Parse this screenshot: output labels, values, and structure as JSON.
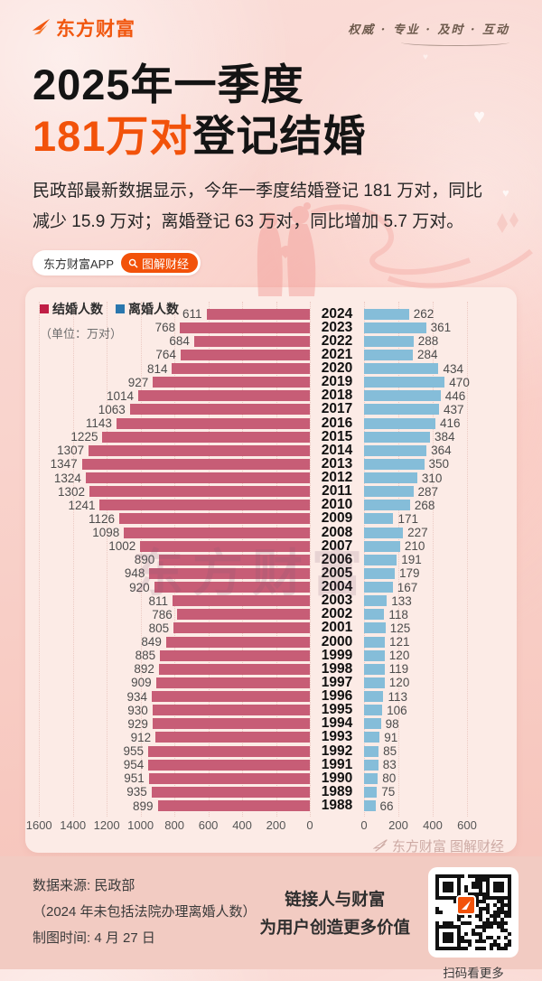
{
  "colors": {
    "accent": "#f2520a",
    "marriage_bar": "#c75d76",
    "divorce_bar": "#85bdd9",
    "legend_marriage": "#c01e45",
    "legend_divorce": "#2a77ae"
  },
  "header": {
    "brand": "东方财富",
    "tagline": "权威 · 专业 · 及时 · 互动"
  },
  "title": {
    "line1": "2025年一季度",
    "line2_highlight": "181万对",
    "line2_rest": "登记结婚"
  },
  "intro": "民政部最新数据显示，今年一季度结婚登记 181 万对，同比\n减少 15.9 万对；离婚登记 63 万对，同比增加 5.7 万对。",
  "badge": {
    "app_label": "东方财富APP",
    "column_label": "图解财经"
  },
  "chart_data": {
    "type": "bar",
    "layout": "butterfly",
    "unit_label": "（单位：万对）",
    "legend": [
      {
        "label": "结婚人数",
        "color": "#c01e45"
      },
      {
        "label": "离婚人数",
        "color": "#2a77ae"
      }
    ],
    "categories": [
      "2024",
      "2023",
      "2022",
      "2021",
      "2020",
      "2019",
      "2018",
      "2017",
      "2016",
      "2015",
      "2014",
      "2013",
      "2012",
      "2011",
      "2010",
      "2009",
      "2008",
      "2007",
      "2006",
      "2005",
      "2004",
      "2003",
      "2002",
      "2001",
      "2000",
      "1999",
      "1998",
      "1997",
      "1996",
      "1995",
      "1994",
      "1993",
      "1992",
      "1991",
      "1990",
      "1989",
      "1988"
    ],
    "series": [
      {
        "name": "结婚人数",
        "values": [
          611,
          768,
          684,
          764,
          814,
          927,
          1014,
          1063,
          1143,
          1225,
          1307,
          1347,
          1324,
          1302,
          1241,
          1126,
          1098,
          1002,
          890,
          948,
          920,
          811,
          786,
          805,
          849,
          885,
          892,
          909,
          934,
          930,
          929,
          912,
          955,
          954,
          951,
          935,
          899
        ]
      },
      {
        "name": "离婚人数",
        "values": [
          262,
          361,
          288,
          284,
          434,
          470,
          446,
          437,
          416,
          384,
          364,
          350,
          310,
          287,
          268,
          171,
          227,
          210,
          191,
          179,
          167,
          133,
          118,
          125,
          121,
          120,
          119,
          120,
          113,
          106,
          98,
          91,
          85,
          83,
          80,
          75,
          66
        ]
      }
    ],
    "left_axis_ticks": [
      1600,
      1400,
      1200,
      1000,
      800,
      600,
      400,
      200,
      0
    ],
    "right_axis_ticks": [
      0,
      200,
      400,
      600
    ],
    "left_max": 1600,
    "right_max": 600,
    "plot_watermark": "东方财富",
    "card_watermark": "东方财富 图解财经"
  },
  "footer": {
    "source_lines": "数据来源: 民政部\n（2024 年未包括法院办理离婚人数）\n制图时间: 4 月 27 日",
    "slogan": "链接人与财富\n为用户创造更多价值",
    "qr_caption": "扫码看更多"
  }
}
